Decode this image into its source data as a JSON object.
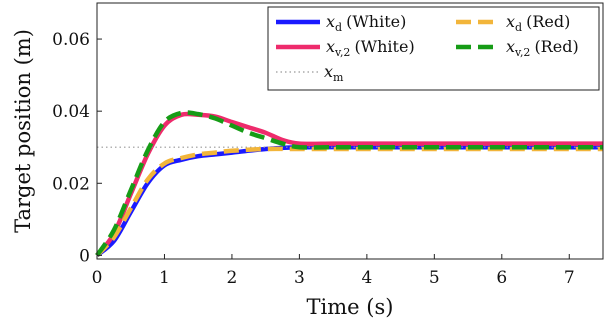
{
  "chart_data": {
    "type": "line",
    "xlabel": "Time (s)",
    "ylabel": "Target position (m)",
    "xlim": [
      0,
      7.5
    ],
    "ylim": [
      -0.001,
      0.07
    ],
    "xticks": [
      0,
      1,
      2,
      3,
      4,
      5,
      6,
      7
    ],
    "yticks": [
      0,
      0.02,
      0.04,
      0.06
    ],
    "ytick_labels": [
      "0",
      "0.02",
      "0.04",
      "0.06"
    ],
    "grid": false,
    "legend_position": "top-right",
    "series": [
      {
        "name": "x_d (White)",
        "symbol": "x",
        "subscript": "d",
        "suffix": "(White)",
        "color": "#1a1aff",
        "style": "solid",
        "x": [
          0,
          0.25,
          0.5,
          0.75,
          1.0,
          1.25,
          1.5,
          1.75,
          2.0,
          2.5,
          3.0,
          4.0,
          5.0,
          6.0,
          7.0,
          7.5
        ],
        "y": [
          0,
          0.004,
          0.012,
          0.02,
          0.025,
          0.0265,
          0.0275,
          0.028,
          0.0285,
          0.0295,
          0.03,
          0.03,
          0.03,
          0.03,
          0.03,
          0.03
        ]
      },
      {
        "name": "x_v,2 (White)",
        "symbol": "x",
        "subscript": "v,2",
        "suffix": "(White)",
        "color": "#ee2b6c",
        "style": "solid",
        "x": [
          0,
          0.25,
          0.5,
          0.75,
          1.0,
          1.25,
          1.5,
          1.75,
          2.0,
          2.25,
          2.5,
          2.75,
          3.0,
          3.5,
          4.0,
          5.0,
          6.0,
          7.0,
          7.5
        ],
        "y": [
          0,
          0.006,
          0.017,
          0.028,
          0.036,
          0.039,
          0.039,
          0.0385,
          0.037,
          0.0355,
          0.034,
          0.032,
          0.031,
          0.031,
          0.031,
          0.031,
          0.031,
          0.031,
          0.031
        ]
      },
      {
        "name": "x_m",
        "symbol": "x",
        "subscript": "m",
        "suffix": "",
        "color": "#999999",
        "style": "dotted",
        "x": [
          0,
          7.5
        ],
        "y": [
          0.03,
          0.03
        ]
      },
      {
        "name": "x_d (Red)",
        "symbol": "x",
        "subscript": "d",
        "suffix": "(Red)",
        "color": "#f2b53a",
        "style": "dashed",
        "x": [
          0,
          0.25,
          0.5,
          0.75,
          1.0,
          1.25,
          1.5,
          1.75,
          2.0,
          2.5,
          3.0,
          4.0,
          5.0,
          6.0,
          7.0,
          7.5
        ],
        "y": [
          0,
          0.005,
          0.013,
          0.021,
          0.0255,
          0.027,
          0.028,
          0.0285,
          0.029,
          0.0295,
          0.0295,
          0.0295,
          0.0295,
          0.0295,
          0.0295,
          0.0295
        ]
      },
      {
        "name": "x_v,2 (Red)",
        "symbol": "x",
        "subscript": "v,2",
        "suffix": "(Red)",
        "color": "#169c16",
        "style": "dashed",
        "x": [
          0,
          0.25,
          0.5,
          0.75,
          1.0,
          1.25,
          1.5,
          1.75,
          2.0,
          2.25,
          2.5,
          2.75,
          3.0,
          3.5,
          4.0,
          5.0,
          6.0,
          7.0,
          7.5
        ],
        "y": [
          0,
          0.007,
          0.018,
          0.029,
          0.037,
          0.0395,
          0.0392,
          0.038,
          0.036,
          0.034,
          0.0325,
          0.031,
          0.03,
          0.03,
          0.03,
          0.03,
          0.03,
          0.03,
          0.03
        ]
      }
    ]
  }
}
